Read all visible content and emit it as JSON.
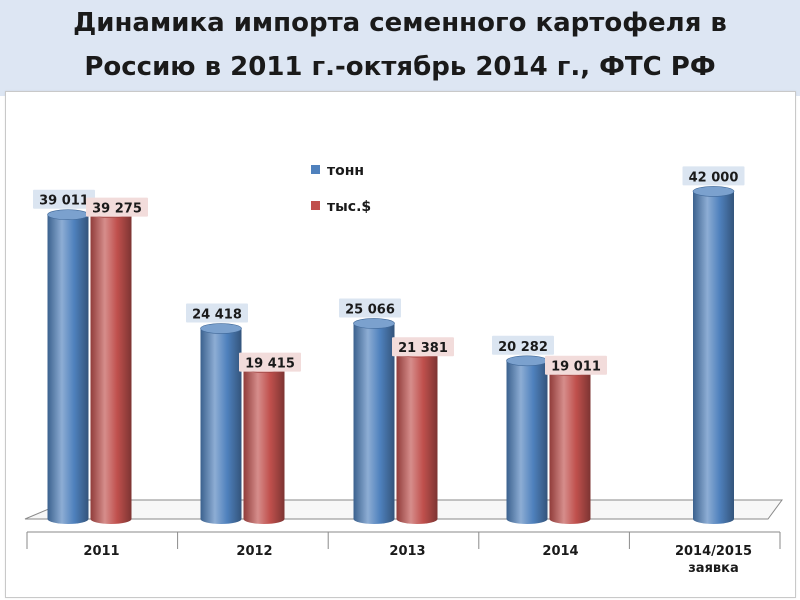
{
  "slide": {
    "title_line1": "Динамика импорта семенного картофеля в",
    "title_line2": "Россию в 2011 г.-октябрь 2014 г., ФТС РФ"
  },
  "chart_data": {
    "type": "bar",
    "title": "Динамика импорта семенного картофеля в Россию в 2011 г.-октябрь 2014 г., ФТС РФ",
    "categories": [
      "2011",
      "2012",
      "2013",
      "2014",
      "2014/2015 заявка"
    ],
    "category_lines": [
      [
        "2011"
      ],
      [
        "2012"
      ],
      [
        "2013"
      ],
      [
        "2014"
      ],
      [
        "2014/2015",
        "заявка"
      ]
    ],
    "series": [
      {
        "name": "тонн",
        "color": "#4f81bd",
        "values": [
          39011,
          24418,
          25066,
          20282,
          42000
        ],
        "labels": [
          "39 011",
          "24 418",
          "25 066",
          "20 282",
          "42 000"
        ]
      },
      {
        "name": "тыс.$",
        "color": "#c0504d",
        "values": [
          39275,
          19415,
          21381,
          19011,
          null
        ],
        "labels": [
          "39 275",
          "19 415",
          "21 381",
          "19 011",
          null
        ]
      }
    ],
    "ylim": [
      0,
      45000
    ],
    "three_d": true,
    "grid": false,
    "legend_position": "top-center",
    "xlabel": "",
    "ylabel": ""
  }
}
